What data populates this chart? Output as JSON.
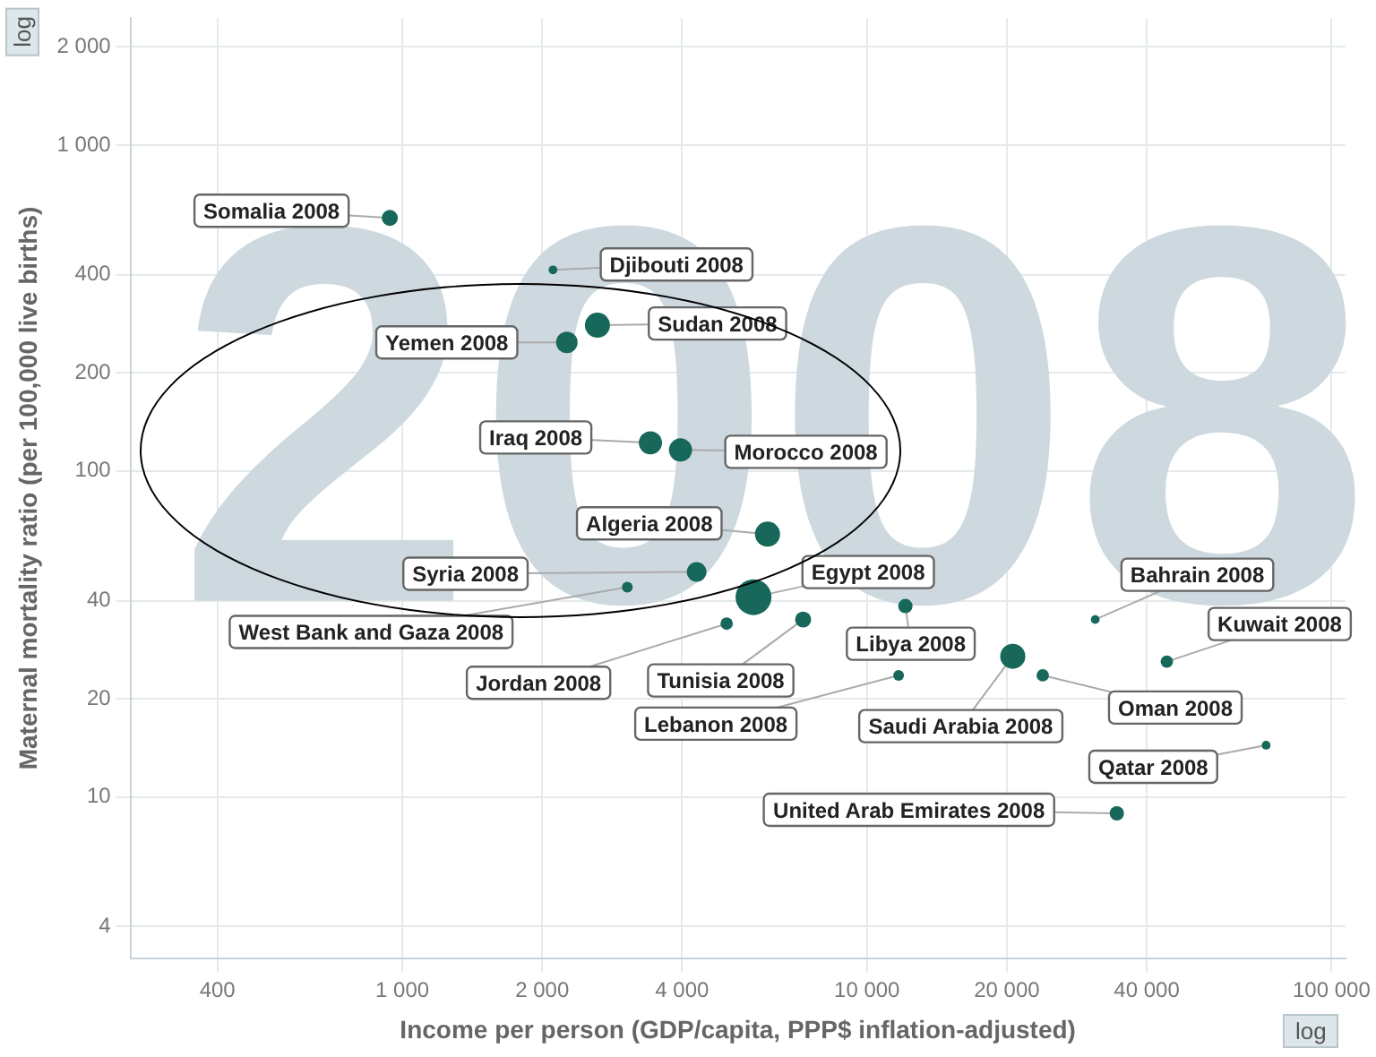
{
  "chart_data": {
    "type": "bubble",
    "xlabel": "Income per person (GDP/capita, PPP$ inflation-adjusted)",
    "ylabel": "Maternal mortality ratio (per 100,000 live births)",
    "log": "xy",
    "grid": true,
    "legend": false,
    "xlim": [
      260,
      107000
    ],
    "ylim": [
      3.2,
      2450
    ],
    "xticks": [
      400,
      {
        "value": 1000,
        "label": "1 000"
      },
      {
        "value": 2000,
        "label": "2 000"
      },
      {
        "value": 4000,
        "label": "4 000"
      },
      {
        "value": 10000,
        "label": "10 000"
      },
      {
        "value": 20000,
        "label": "20 000"
      },
      {
        "value": 40000,
        "label": "40 000"
      },
      {
        "value": 100000,
        "label": "100 000"
      }
    ],
    "yticks": [
      4,
      10,
      20,
      40,
      100,
      200,
      400,
      {
        "value": 1000,
        "label": "1 000"
      },
      {
        "value": 2000,
        "label": "2 000"
      }
    ],
    "series": [
      {
        "color": "#17675a",
        "x": [
          940,
          2110,
          2630,
          2260,
          3420,
          3970,
          6110,
          4300,
          3050,
          5700,
          12100,
          4990,
          7290,
          11700,
          20600,
          23900,
          31000,
          44200,
          72300,
          34500
        ],
        "values": [
          598,
          414,
          280,
          248,
          122,
          116,
          64,
          49,
          44,
          41,
          38.5,
          34,
          35,
          23.6,
          27,
          23.6,
          35,
          26,
          14.4,
          8.9
        ],
        "sizes": [
          0.2,
          0.06,
          0.49,
          0.36,
          0.42,
          0.42,
          0.49,
          0.3,
          0.09,
          1,
          0.16,
          0.12,
          0.2,
          0.09,
          0.49,
          0.12,
          0.06,
          0.12,
          0.06,
          0.16
        ]
      }
    ],
    "annotations": [
      {
        "text": "Somalia 2008",
        "x": 940,
        "y": 598
      },
      {
        "text": "Djibouti 2008",
        "x": 2110,
        "y": 414
      },
      {
        "text": "Sudan 2008",
        "x": 2630,
        "y": 280
      },
      {
        "text": "Yemen 2008",
        "x": 2260,
        "y": 248
      },
      {
        "text": "Iraq 2008",
        "x": 3420,
        "y": 122
      },
      {
        "text": "Morocco 2008",
        "x": 3970,
        "y": 116
      },
      {
        "text": "Algeria 2008",
        "x": 6110,
        "y": 64
      },
      {
        "text": "Syria 2008",
        "x": 4300,
        "y": 49
      },
      {
        "text": "West Bank and Gaza 2008",
        "x": 3050,
        "y": 44
      },
      {
        "text": "Egypt 2008",
        "x": 5700,
        "y": 41
      },
      {
        "text": "Libya 2008",
        "x": 12100,
        "y": 38.5
      },
      {
        "text": "Jordan 2008",
        "x": 4990,
        "y": 34
      },
      {
        "text": "Tunisia 2008",
        "x": 7290,
        "y": 35
      },
      {
        "text": "Lebanon 2008",
        "x": 11700,
        "y": 23.6
      },
      {
        "text": "Saudi Arabia 2008",
        "x": 20600,
        "y": 27
      },
      {
        "text": "Oman 2008",
        "x": 23900,
        "y": 23.6
      },
      {
        "text": "Bahrain 2008",
        "x": 31000,
        "y": 35
      },
      {
        "text": "Kuwait 2008",
        "x": 44200,
        "y": 26
      },
      {
        "text": "Qatar 2008",
        "x": 72300,
        "y": 14.4
      },
      {
        "text": "United Arab Emirates 2008",
        "x": 34500,
        "y": 8.9
      },
      "2008",
      "log",
      "log"
    ]
  }
}
